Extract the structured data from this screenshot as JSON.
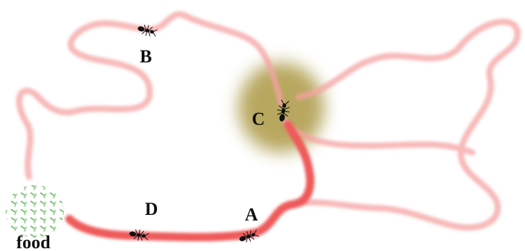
{
  "labels": {
    "b": "B",
    "c": "C",
    "d": "D",
    "a": "A",
    "food": "food"
  }
}
